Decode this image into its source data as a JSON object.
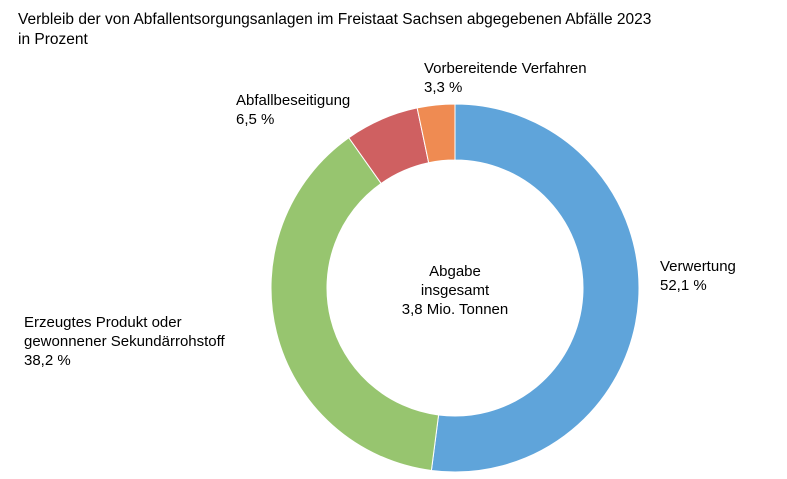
{
  "chart_data": {
    "type": "pie",
    "variant": "donut",
    "title": "Verbleib der von Abfallentsorgungsanlagen im Freistaat Sachsen abgegebenen Abfälle 2023",
    "subtitle": "in Prozent",
    "center_label": [
      "Abgabe",
      "insgesamt",
      "3,8 Mio. Tonnen"
    ],
    "slices": [
      {
        "name": "Verwertung",
        "value": 52.1,
        "value_label": "52,1 %",
        "color": "#5FA4DA"
      },
      {
        "name": "Erzeugtes Produkt oder gewonnener Sekundärrohstoff",
        "name_lines": [
          "Erzeugtes Produkt oder",
          "gewonnener Sekundärrohstoff"
        ],
        "value": 38.2,
        "value_label": "38,2 %",
        "color": "#97C56F"
      },
      {
        "name": "Abfallbeseitigung",
        "value": 6.5,
        "value_label": "6,5 %",
        "color": "#CF6061"
      },
      {
        "name": "Vorbereitende Verfahren",
        "value": 3.3,
        "value_label": "3,3 %",
        "color": "#EF8B52"
      }
    ]
  }
}
